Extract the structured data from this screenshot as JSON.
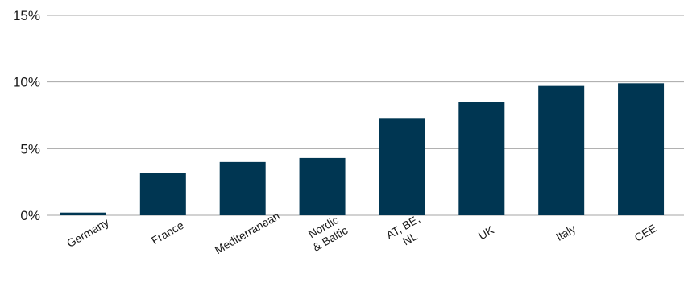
{
  "chart_data": {
    "type": "bar",
    "categories": [
      "Germany",
      "France",
      "Mediterranean",
      "Nordic\n& Baltic",
      "AT, BE,\nNL",
      "UK",
      "Italy",
      "CEE"
    ],
    "values": [
      0.2,
      3.2,
      4.0,
      4.3,
      7.3,
      8.5,
      9.7,
      9.9
    ],
    "yticks": [
      "0%",
      "5%",
      "10%",
      "15%"
    ],
    "ytick_values": [
      0,
      5,
      10,
      15
    ],
    "ylim": [
      0,
      15
    ],
    "grid": true,
    "legend": "none",
    "title": "",
    "xlabel": "",
    "ylabel": "",
    "bar_color": "#003652",
    "grid_color": "#a6a6a6"
  }
}
